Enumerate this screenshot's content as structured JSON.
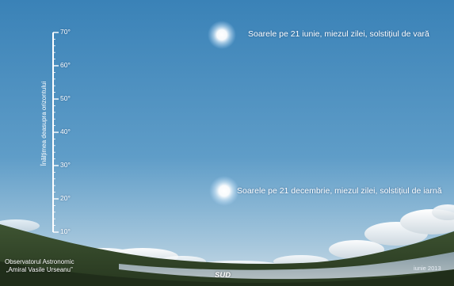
{
  "sky": {
    "altitude_axis": {
      "title": "Înălțimea deasupra orizontului",
      "ticks": [
        {
          "label": "70°",
          "value": 70
        },
        {
          "label": "60°",
          "value": 60
        },
        {
          "label": "50°",
          "value": 50
        },
        {
          "label": "40°",
          "value": 40
        },
        {
          "label": "30°",
          "value": 30
        },
        {
          "label": "20°",
          "value": 20
        },
        {
          "label": "10°",
          "value": 10
        }
      ]
    },
    "sun_summer": {
      "label": "Soarele pe 21 iunie, miezul zilei, solstițiul de vară",
      "altitude_deg": 67
    },
    "sun_winter": {
      "label": "Soarele pe 21 decembrie, miezul zilei, solstițiul de iarnă",
      "altitude_deg": 22
    }
  },
  "footer": {
    "observatory_line1": "Observatorul Astronomic",
    "observatory_line2": "„Amiral Vasile Urseanu”",
    "direction": "SUD",
    "date": "iunie 2013"
  },
  "colors": {
    "sky_top": "#3a82b7",
    "sky_bottom": "#bcd3e1",
    "sun_glow": "#ffffff",
    "ground": "#33452a"
  }
}
